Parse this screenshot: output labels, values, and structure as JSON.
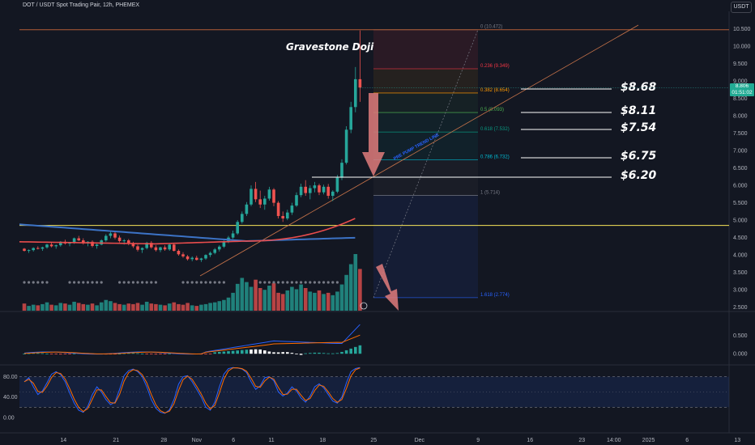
{
  "header": {
    "title": "DOT / USDT Spot Trading Pair, 12h, PHEMEX",
    "currency": "USDT"
  },
  "price_tag": {
    "price": "8.806",
    "timer": "01:51:02"
  },
  "colors": {
    "background": "#131722",
    "up": "#26a69a",
    "down": "#ef5350",
    "fib_top_line": "#b25d36",
    "horizontal_support": "#f7e55a",
    "ma_fast": "#e84c4c",
    "ma_slow": "#3c73c6",
    "arrow": "#e07b7b"
  },
  "chart_data": {
    "type": "candlestick",
    "price_axis": {
      "ylim": [
        2.4,
        11.0
      ],
      "ticks": [
        "2.500",
        "3.000",
        "3.500",
        "4.000",
        "4.500",
        "5.000",
        "5.500",
        "6.000",
        "6.500",
        "7.000",
        "7.500",
        "8.000",
        "8.500",
        "9.000",
        "9.500",
        "10.000",
        "10.500"
      ]
    },
    "x_axis": {
      "ticks": [
        "14",
        "21",
        "28",
        "Nov",
        "6",
        "11",
        "18",
        "25",
        "Dec",
        "9",
        "16",
        "23",
        "14:00",
        "2025",
        "6",
        "13"
      ]
    },
    "candles": [
      [
        4.18,
        4.2,
        4.1,
        4.12
      ],
      [
        4.12,
        4.16,
        4.06,
        4.14
      ],
      [
        4.14,
        4.22,
        4.1,
        4.2
      ],
      [
        4.2,
        4.25,
        4.16,
        4.18
      ],
      [
        4.18,
        4.24,
        4.12,
        4.22
      ],
      [
        4.22,
        4.32,
        4.18,
        4.3
      ],
      [
        4.3,
        4.36,
        4.22,
        4.25
      ],
      [
        4.25,
        4.3,
        4.18,
        4.28
      ],
      [
        4.28,
        4.4,
        4.24,
        4.38
      ],
      [
        4.38,
        4.44,
        4.3,
        4.33
      ],
      [
        4.33,
        4.38,
        4.25,
        4.35
      ],
      [
        4.35,
        4.5,
        4.32,
        4.48
      ],
      [
        4.48,
        4.55,
        4.4,
        4.42
      ],
      [
        4.42,
        4.48,
        4.3,
        4.34
      ],
      [
        4.34,
        4.4,
        4.25,
        4.38
      ],
      [
        4.38,
        4.42,
        4.22,
        4.26
      ],
      [
        4.26,
        4.32,
        4.18,
        4.3
      ],
      [
        4.3,
        4.45,
        4.28,
        4.42
      ],
      [
        4.42,
        4.6,
        4.38,
        4.55
      ],
      [
        4.55,
        4.68,
        4.48,
        4.62
      ],
      [
        4.62,
        4.66,
        4.45,
        4.5
      ],
      [
        4.5,
        4.56,
        4.36,
        4.4
      ],
      [
        4.4,
        4.46,
        4.3,
        4.42
      ],
      [
        4.42,
        4.46,
        4.28,
        4.32
      ],
      [
        4.32,
        4.38,
        4.2,
        4.25
      ],
      [
        4.25,
        4.3,
        4.1,
        4.15
      ],
      [
        4.15,
        4.22,
        4.06,
        4.2
      ],
      [
        4.2,
        4.38,
        4.16,
        4.35
      ],
      [
        4.35,
        4.4,
        4.18,
        4.22
      ],
      [
        4.22,
        4.28,
        4.1,
        4.14
      ],
      [
        4.14,
        4.24,
        4.08,
        4.22
      ],
      [
        4.22,
        4.28,
        4.12,
        4.16
      ],
      [
        4.16,
        4.34,
        4.12,
        4.3
      ],
      [
        4.3,
        4.34,
        4.1,
        4.12
      ],
      [
        4.12,
        4.16,
        3.98,
        4.02
      ],
      [
        4.02,
        4.08,
        3.92,
        3.96
      ],
      [
        3.96,
        4.0,
        3.84,
        3.88
      ],
      [
        3.88,
        3.96,
        3.82,
        3.92
      ],
      [
        3.92,
        3.98,
        3.84,
        3.86
      ],
      [
        3.86,
        3.92,
        3.8,
        3.9
      ],
      [
        3.9,
        4.02,
        3.86,
        4.0
      ],
      [
        4.0,
        4.1,
        3.94,
        4.06
      ],
      [
        4.06,
        4.2,
        4.02,
        4.16
      ],
      [
        4.16,
        4.28,
        4.1,
        4.24
      ],
      [
        4.24,
        4.42,
        4.2,
        4.38
      ],
      [
        4.38,
        4.55,
        4.34,
        4.5
      ],
      [
        4.5,
        4.7,
        4.46,
        4.62
      ],
      [
        4.62,
        5.0,
        4.58,
        4.95
      ],
      [
        4.95,
        5.25,
        4.9,
        5.18
      ],
      [
        5.18,
        5.52,
        5.12,
        5.45
      ],
      [
        5.45,
        6.0,
        5.4,
        5.9
      ],
      [
        5.9,
        6.1,
        5.52,
        5.6
      ],
      [
        5.6,
        5.85,
        5.35,
        5.45
      ],
      [
        5.45,
        5.7,
        5.3,
        5.62
      ],
      [
        5.62,
        5.96,
        5.56,
        5.88
      ],
      [
        5.88,
        5.92,
        5.4,
        5.5
      ],
      [
        5.5,
        5.55,
        5.05,
        5.12
      ],
      [
        5.12,
        5.25,
        4.95,
        5.05
      ],
      [
        5.05,
        5.3,
        5.0,
        5.22
      ],
      [
        5.22,
        5.5,
        5.15,
        5.42
      ],
      [
        5.42,
        5.8,
        5.38,
        5.72
      ],
      [
        5.72,
        6.05,
        5.66,
        5.96
      ],
      [
        5.96,
        6.15,
        5.7,
        5.78
      ],
      [
        5.78,
        6.0,
        5.6,
        5.92
      ],
      [
        5.92,
        6.1,
        5.8,
        6.0
      ],
      [
        6.0,
        6.05,
        5.72,
        5.8
      ],
      [
        5.8,
        6.02,
        5.74,
        5.96
      ],
      [
        5.96,
        6.04,
        5.62,
        5.7
      ],
      [
        5.7,
        5.86,
        5.55,
        5.82
      ],
      [
        5.82,
        6.3,
        5.78,
        6.22
      ],
      [
        6.22,
        6.75,
        6.15,
        6.65
      ],
      [
        6.65,
        7.7,
        6.6,
        7.6
      ],
      [
        7.6,
        8.4,
        7.5,
        8.25
      ],
      [
        8.25,
        9.4,
        8.1,
        9.05
      ],
      [
        9.05,
        10.45,
        8.4,
        8.81
      ]
    ],
    "volume": [
      12,
      8,
      10,
      9,
      11,
      14,
      10,
      9,
      13,
      12,
      10,
      15,
      13,
      11,
      10,
      12,
      9,
      14,
      18,
      16,
      13,
      11,
      10,
      12,
      11,
      13,
      10,
      15,
      12,
      11,
      10,
      9,
      12,
      14,
      11,
      10,
      13,
      9,
      8,
      10,
      11,
      13,
      14,
      16,
      18,
      22,
      30,
      45,
      55,
      48,
      40,
      52,
      38,
      35,
      42,
      46,
      30,
      28,
      34,
      40,
      36,
      44,
      38,
      32,
      30,
      34,
      28,
      30,
      26,
      32,
      44,
      60,
      78,
      95,
      70
    ],
    "horizontal_levels": [
      {
        "price": 10.472,
        "label": "0 (10.472)"
      },
      {
        "price": 9.349,
        "label": "0.236 (9.349)"
      },
      {
        "price": 8.654,
        "label": "0.382 (8.654)"
      },
      {
        "price": 8.093,
        "label": "0.5 (8.093)"
      },
      {
        "price": 7.532,
        "label": "0.618 (7.532)"
      },
      {
        "price": 6.732,
        "label": "0.786 (6.732)"
      },
      {
        "price": 5.714,
        "label": "1 (5.714)"
      },
      {
        "price": 2.774,
        "label": "1.618 (2.774)"
      }
    ],
    "support_line_price": 4.85,
    "annotations": {
      "pattern_title": "Gravestone Doji",
      "trendline_label": "PRE PUMP TREND LINE",
      "targets": [
        "$8.68",
        "$8.11",
        "$7.54",
        "$6.75",
        "$6.20"
      ]
    },
    "indicator1": {
      "ticks": [
        "0.500",
        "0.000"
      ],
      "ylim": [
        -0.15,
        1.0
      ]
    },
    "indicator2": {
      "ticks": [
        "80.00",
        "40.00",
        "0.00"
      ],
      "ylim": [
        -5,
        100
      ],
      "band": [
        20,
        80
      ]
    }
  }
}
